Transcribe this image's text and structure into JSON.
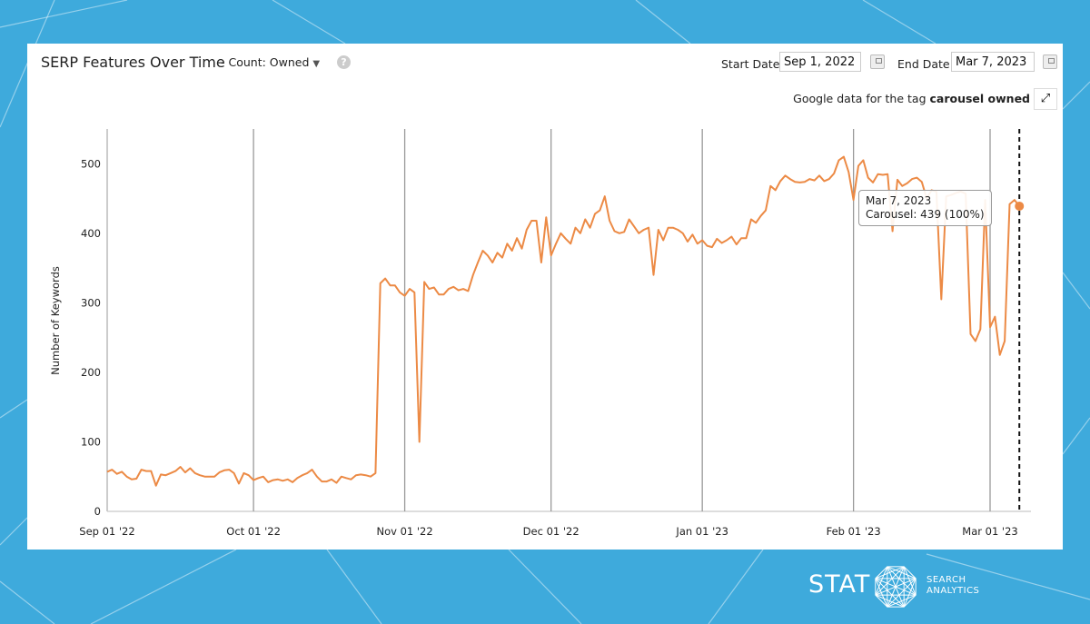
{
  "header": {
    "title": "SERP Features Over Time",
    "count_label": "- Count: Owned",
    "help_icon": "question-circle-icon",
    "start_label": "Start Date:",
    "start_value": "Sep 1, 2022",
    "end_label": "End Date:",
    "end_value": "Mar 7, 2023",
    "tag_prefix": "Google data for the tag",
    "tag_name": "carousel owned",
    "expand_icon": "expand-arrows-icon"
  },
  "tooltip": {
    "date": "Mar 7, 2023",
    "text": "Carousel: 439 (100%)"
  },
  "logo": {
    "brand": "STAT",
    "line1": "SEARCH",
    "line2": "ANALYTICS"
  },
  "colors": {
    "background": "#3eaadc",
    "line": "#ec8a45",
    "grid": "#999999"
  },
  "chart_data": {
    "type": "line",
    "title": "SERP Features Over Time",
    "xlabel": "",
    "ylabel": "Number of Keywords",
    "ylim": [
      0,
      550
    ],
    "yticks": [
      "0",
      "100",
      "200",
      "300",
      "400",
      "500"
    ],
    "xticks": [
      [
        "2022-09-01",
        "Sep 01 '22"
      ],
      [
        "2022-10-01",
        "Oct 01 '22"
      ],
      [
        "2022-11-01",
        "Nov 01 '22"
      ],
      [
        "2022-12-01",
        "Dec 01 '22"
      ],
      [
        "2023-01-01",
        "Jan 01 '23"
      ],
      [
        "2023-02-01",
        "Feb 01 '23"
      ],
      [
        "2023-03-01",
        "Mar 01 '23"
      ]
    ],
    "xlim": [
      "2022-09-01",
      "2023-03-08"
    ],
    "grid": "vertical",
    "highlight": {
      "date": "2023-03-07",
      "value": 439
    },
    "series": [
      {
        "points": [
          [
            "2022-09-01",
            57
          ],
          [
            "2022-09-02",
            60
          ],
          [
            "2022-09-03",
            54
          ],
          [
            "2022-09-04",
            57
          ],
          [
            "2022-09-05",
            50
          ],
          [
            "2022-09-06",
            46
          ],
          [
            "2022-09-07",
            47
          ],
          [
            "2022-09-08",
            60
          ],
          [
            "2022-09-09",
            58
          ],
          [
            "2022-09-10",
            58
          ],
          [
            "2022-09-11",
            37
          ],
          [
            "2022-09-12",
            53
          ],
          [
            "2022-09-13",
            52
          ],
          [
            "2022-09-14",
            55
          ],
          [
            "2022-09-15",
            58
          ],
          [
            "2022-09-16",
            64
          ],
          [
            "2022-09-17",
            56
          ],
          [
            "2022-09-18",
            62
          ],
          [
            "2022-09-19",
            55
          ],
          [
            "2022-09-20",
            52
          ],
          [
            "2022-09-21",
            50
          ],
          [
            "2022-09-22",
            50
          ],
          [
            "2022-09-23",
            50
          ],
          [
            "2022-09-24",
            56
          ],
          [
            "2022-09-25",
            59
          ],
          [
            "2022-09-26",
            60
          ],
          [
            "2022-09-27",
            55
          ],
          [
            "2022-09-28",
            40
          ],
          [
            "2022-09-29",
            55
          ],
          [
            "2022-09-30",
            52
          ],
          [
            "2022-10-01",
            45
          ],
          [
            "2022-10-02",
            48
          ],
          [
            "2022-10-03",
            50
          ],
          [
            "2022-10-04",
            42
          ],
          [
            "2022-10-05",
            45
          ],
          [
            "2022-10-06",
            46
          ],
          [
            "2022-10-07",
            44
          ],
          [
            "2022-10-08",
            46
          ],
          [
            "2022-10-09",
            42
          ],
          [
            "2022-10-10",
            48
          ],
          [
            "2022-10-11",
            52
          ],
          [
            "2022-10-12",
            55
          ],
          [
            "2022-10-13",
            60
          ],
          [
            "2022-10-14",
            50
          ],
          [
            "2022-10-15",
            43
          ],
          [
            "2022-10-16",
            43
          ],
          [
            "2022-10-17",
            46
          ],
          [
            "2022-10-18",
            41
          ],
          [
            "2022-10-19",
            50
          ],
          [
            "2022-10-20",
            48
          ],
          [
            "2022-10-21",
            46
          ],
          [
            "2022-10-22",
            52
          ],
          [
            "2022-10-23",
            53
          ],
          [
            "2022-10-24",
            52
          ],
          [
            "2022-10-25",
            50
          ],
          [
            "2022-10-26",
            55
          ],
          [
            "2022-10-27",
            328
          ],
          [
            "2022-10-28",
            335
          ],
          [
            "2022-10-29",
            325
          ],
          [
            "2022-10-30",
            325
          ],
          [
            "2022-10-31",
            315
          ],
          [
            "2022-11-01",
            310
          ],
          [
            "2022-11-02",
            320
          ],
          [
            "2022-11-03",
            315
          ],
          [
            "2022-11-04",
            100
          ],
          [
            "2022-11-05",
            330
          ],
          [
            "2022-11-06",
            320
          ],
          [
            "2022-11-07",
            322
          ],
          [
            "2022-11-08",
            312
          ],
          [
            "2022-11-09",
            312
          ],
          [
            "2022-11-10",
            320
          ],
          [
            "2022-11-11",
            323
          ],
          [
            "2022-11-12",
            318
          ],
          [
            "2022-11-13",
            320
          ],
          [
            "2022-11-14",
            317
          ],
          [
            "2022-11-15",
            340
          ],
          [
            "2022-11-16",
            358
          ],
          [
            "2022-11-17",
            375
          ],
          [
            "2022-11-18",
            368
          ],
          [
            "2022-11-19",
            358
          ],
          [
            "2022-11-20",
            372
          ],
          [
            "2022-11-21",
            365
          ],
          [
            "2022-11-22",
            385
          ],
          [
            "2022-11-23",
            375
          ],
          [
            "2022-11-24",
            393
          ],
          [
            "2022-11-25",
            378
          ],
          [
            "2022-11-26",
            405
          ],
          [
            "2022-11-27",
            418
          ],
          [
            "2022-11-28",
            418
          ],
          [
            "2022-11-29",
            358
          ],
          [
            "2022-11-30",
            423
          ],
          [
            "2022-12-01",
            368
          ],
          [
            "2022-12-02",
            385
          ],
          [
            "2022-12-03",
            400
          ],
          [
            "2022-12-04",
            392
          ],
          [
            "2022-12-05",
            385
          ],
          [
            "2022-12-06",
            408
          ],
          [
            "2022-12-07",
            400
          ],
          [
            "2022-12-08",
            420
          ],
          [
            "2022-12-09",
            408
          ],
          [
            "2022-12-10",
            428
          ],
          [
            "2022-12-11",
            433
          ],
          [
            "2022-12-12",
            453
          ],
          [
            "2022-12-13",
            418
          ],
          [
            "2022-12-14",
            403
          ],
          [
            "2022-12-15",
            400
          ],
          [
            "2022-12-16",
            402
          ],
          [
            "2022-12-17",
            420
          ],
          [
            "2022-12-18",
            410
          ],
          [
            "2022-12-19",
            400
          ],
          [
            "2022-12-20",
            405
          ],
          [
            "2022-12-21",
            408
          ],
          [
            "2022-12-22",
            340
          ],
          [
            "2022-12-23",
            405
          ],
          [
            "2022-12-24",
            390
          ],
          [
            "2022-12-25",
            408
          ],
          [
            "2022-12-26",
            408
          ],
          [
            "2022-12-27",
            405
          ],
          [
            "2022-12-28",
            400
          ],
          [
            "2022-12-29",
            388
          ],
          [
            "2022-12-30",
            398
          ],
          [
            "2022-12-31",
            385
          ],
          [
            "2023-01-01",
            390
          ],
          [
            "2023-01-02",
            382
          ],
          [
            "2023-01-03",
            380
          ],
          [
            "2023-01-04",
            392
          ],
          [
            "2023-01-05",
            386
          ],
          [
            "2023-01-06",
            390
          ],
          [
            "2023-01-07",
            395
          ],
          [
            "2023-01-08",
            384
          ],
          [
            "2023-01-09",
            393
          ],
          [
            "2023-01-10",
            393
          ],
          [
            "2023-01-11",
            420
          ],
          [
            "2023-01-12",
            415
          ],
          [
            "2023-01-13",
            425
          ],
          [
            "2023-01-14",
            433
          ],
          [
            "2023-01-15",
            468
          ],
          [
            "2023-01-16",
            462
          ],
          [
            "2023-01-17",
            475
          ],
          [
            "2023-01-18",
            483
          ],
          [
            "2023-01-19",
            478
          ],
          [
            "2023-01-20",
            474
          ],
          [
            "2023-01-21",
            473
          ],
          [
            "2023-01-22",
            474
          ],
          [
            "2023-01-23",
            478
          ],
          [
            "2023-01-24",
            476
          ],
          [
            "2023-01-25",
            483
          ],
          [
            "2023-01-26",
            475
          ],
          [
            "2023-01-27",
            478
          ],
          [
            "2023-01-28",
            486
          ],
          [
            "2023-01-29",
            505
          ],
          [
            "2023-01-30",
            510
          ],
          [
            "2023-01-31",
            488
          ],
          [
            "2023-02-01",
            448
          ],
          [
            "2023-02-02",
            497
          ],
          [
            "2023-02-03",
            505
          ],
          [
            "2023-02-04",
            480
          ],
          [
            "2023-02-05",
            473
          ],
          [
            "2023-02-06",
            485
          ],
          [
            "2023-02-07",
            484
          ],
          [
            "2023-02-08",
            485
          ],
          [
            "2023-02-09",
            403
          ],
          [
            "2023-02-10",
            477
          ],
          [
            "2023-02-11",
            468
          ],
          [
            "2023-02-12",
            472
          ],
          [
            "2023-02-13",
            478
          ],
          [
            "2023-02-14",
            480
          ],
          [
            "2023-02-15",
            474
          ],
          [
            "2023-02-16",
            450
          ],
          [
            "2023-02-17",
            462
          ],
          [
            "2023-02-18",
            460
          ],
          [
            "2023-02-19",
            305
          ],
          [
            "2023-02-20",
            453
          ],
          [
            "2023-02-21",
            455
          ],
          [
            "2023-02-22",
            458
          ],
          [
            "2023-02-23",
            460
          ],
          [
            "2023-02-24",
            457
          ],
          [
            "2023-02-25",
            255
          ],
          [
            "2023-02-26",
            245
          ],
          [
            "2023-02-27",
            262
          ],
          [
            "2023-02-28",
            448
          ],
          [
            "2023-03-01",
            265
          ],
          [
            "2023-03-02",
            280
          ],
          [
            "2023-03-03",
            225
          ],
          [
            "2023-03-04",
            245
          ],
          [
            "2023-03-05",
            442
          ],
          [
            "2023-03-06",
            448
          ],
          [
            "2023-03-07",
            439
          ]
        ]
      }
    ]
  }
}
